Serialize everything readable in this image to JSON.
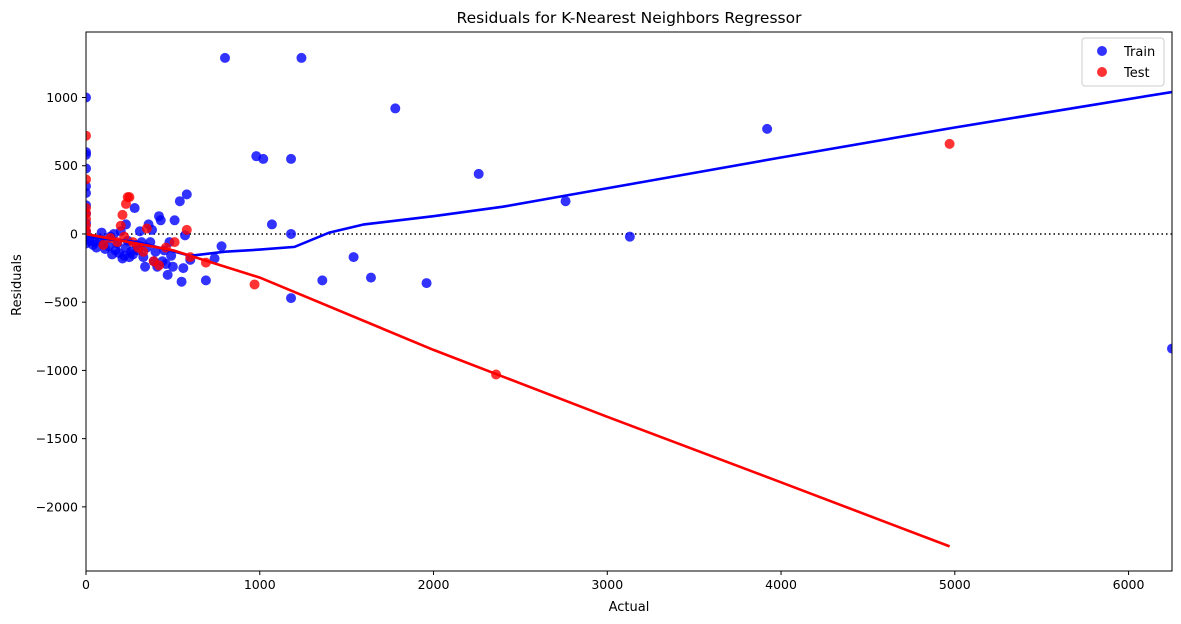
{
  "chart_data": {
    "type": "scatter",
    "title": "Residuals for K-Nearest Neighbors Regressor",
    "xlabel": "Actual",
    "ylabel": "Residuals",
    "xlim": [
      0,
      6250
    ],
    "ylim": [
      -2470,
      1480
    ],
    "x_ticks": [
      0,
      1000,
      2000,
      3000,
      4000,
      5000,
      6000
    ],
    "x_tick_labels": [
      "0",
      "1000",
      "2000",
      "3000",
      "4000",
      "5000",
      "6000"
    ],
    "y_ticks": [
      1000,
      500,
      0,
      -500,
      -1000,
      -1500,
      -2000
    ],
    "y_tick_labels": [
      "1000",
      "500",
      "0",
      "−500",
      "−1000",
      "−1500",
      "−2000"
    ],
    "grid": false,
    "legend_position": "top-right",
    "zero_line": {
      "y": 0,
      "style": "dotted",
      "color": "#000000"
    },
    "series": [
      {
        "name": "Train",
        "color": "#0000ff",
        "points": [
          [
            0,
            1000
          ],
          [
            0,
            600
          ],
          [
            0,
            580
          ],
          [
            0,
            480
          ],
          [
            0,
            350
          ],
          [
            0,
            300
          ],
          [
            0,
            210
          ],
          [
            0,
            150
          ],
          [
            0,
            80
          ],
          [
            0,
            20
          ],
          [
            0,
            -30
          ],
          [
            0,
            -70
          ],
          [
            20,
            -50
          ],
          [
            40,
            -80
          ],
          [
            50,
            -60
          ],
          [
            60,
            -100
          ],
          [
            80,
            -40
          ],
          [
            90,
            10
          ],
          [
            100,
            -70
          ],
          [
            110,
            -110
          ],
          [
            130,
            -90
          ],
          [
            140,
            -20
          ],
          [
            150,
            -150
          ],
          [
            160,
            0
          ],
          [
            170,
            -120
          ],
          [
            180,
            -70
          ],
          [
            190,
            -140
          ],
          [
            200,
            20
          ],
          [
            210,
            -180
          ],
          [
            220,
            -160
          ],
          [
            230,
            -100
          ],
          [
            230,
            70
          ],
          [
            240,
            -50
          ],
          [
            250,
            -170
          ],
          [
            260,
            -130
          ],
          [
            270,
            -150
          ],
          [
            280,
            190
          ],
          [
            290,
            -80
          ],
          [
            300,
            -120
          ],
          [
            310,
            20
          ],
          [
            320,
            -60
          ],
          [
            330,
            -170
          ],
          [
            340,
            -240
          ],
          [
            350,
            -100
          ],
          [
            360,
            70
          ],
          [
            370,
            -60
          ],
          [
            380,
            30
          ],
          [
            390,
            -200
          ],
          [
            400,
            -130
          ],
          [
            410,
            -240
          ],
          [
            420,
            130
          ],
          [
            430,
            100
          ],
          [
            440,
            -200
          ],
          [
            450,
            -120
          ],
          [
            460,
            -220
          ],
          [
            470,
            -300
          ],
          [
            480,
            -60
          ],
          [
            490,
            -160
          ],
          [
            500,
            -240
          ],
          [
            510,
            100
          ],
          [
            540,
            240
          ],
          [
            550,
            -350
          ],
          [
            560,
            -250
          ],
          [
            570,
            -10
          ],
          [
            580,
            290
          ],
          [
            600,
            -190
          ],
          [
            690,
            -340
          ],
          [
            740,
            -180
          ],
          [
            780,
            -90
          ],
          [
            800,
            1290
          ],
          [
            980,
            570
          ],
          [
            1020,
            550
          ],
          [
            1070,
            70
          ],
          [
            1180,
            550
          ],
          [
            1180,
            0
          ],
          [
            1180,
            -470
          ],
          [
            1240,
            1290
          ],
          [
            1360,
            -340
          ],
          [
            1540,
            -170
          ],
          [
            1640,
            -320
          ],
          [
            1780,
            920
          ],
          [
            1960,
            -360
          ],
          [
            2260,
            440
          ],
          [
            2760,
            240
          ],
          [
            3130,
            -20
          ],
          [
            3920,
            770
          ],
          [
            6250,
            -840
          ]
        ],
        "trend": [
          [
            0,
            -20
          ],
          [
            300,
            -60
          ],
          [
            600,
            -160
          ],
          [
            800,
            -130
          ],
          [
            1000,
            -115
          ],
          [
            1200,
            -95
          ],
          [
            1400,
            10
          ],
          [
            1600,
            70
          ],
          [
            1800,
            100
          ],
          [
            2000,
            130
          ],
          [
            2400,
            200
          ],
          [
            2800,
            290
          ],
          [
            3200,
            380
          ],
          [
            4000,
            560
          ],
          [
            5000,
            780
          ],
          [
            6250,
            1040
          ]
        ]
      },
      {
        "name": "Test",
        "color": "#ff0000",
        "points": [
          [
            0,
            720
          ],
          [
            0,
            400
          ],
          [
            0,
            190
          ],
          [
            0,
            150
          ],
          [
            0,
            110
          ],
          [
            0,
            60
          ],
          [
            0,
            20
          ],
          [
            100,
            -80
          ],
          [
            140,
            -30
          ],
          [
            180,
            -60
          ],
          [
            200,
            60
          ],
          [
            210,
            140
          ],
          [
            220,
            -20
          ],
          [
            230,
            220
          ],
          [
            240,
            270
          ],
          [
            250,
            270
          ],
          [
            270,
            -60
          ],
          [
            300,
            -100
          ],
          [
            330,
            -130
          ],
          [
            350,
            40
          ],
          [
            390,
            -200
          ],
          [
            420,
            -230
          ],
          [
            460,
            -100
          ],
          [
            510,
            -60
          ],
          [
            580,
            30
          ],
          [
            600,
            -170
          ],
          [
            690,
            -210
          ],
          [
            970,
            -370
          ],
          [
            2360,
            -1030
          ],
          [
            4970,
            660
          ]
        ],
        "trend": [
          [
            0,
            0
          ],
          [
            500,
            -120
          ],
          [
            1000,
            -320
          ],
          [
            2000,
            -850
          ],
          [
            3000,
            -1340
          ],
          [
            4000,
            -1820
          ],
          [
            4970,
            -2290
          ]
        ]
      }
    ]
  }
}
